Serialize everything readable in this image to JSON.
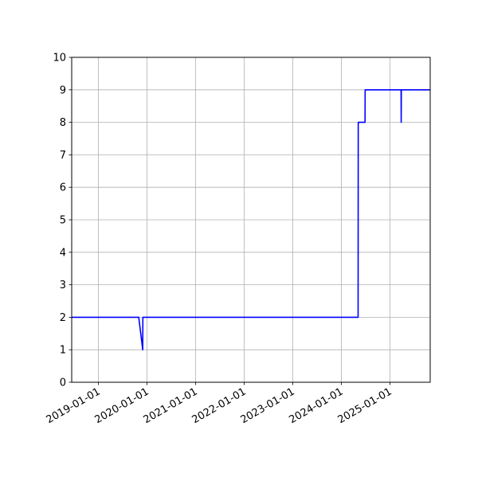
{
  "chart_data": {
    "type": "line",
    "title": "",
    "xlabel": "",
    "ylabel": "",
    "xlim": [
      "2018-06-14",
      "2025-10-30"
    ],
    "ylim": [
      0,
      10
    ],
    "grid": true,
    "line_color": "#0000ff",
    "grid_color": "#b0b0b0",
    "x_ticks": [
      "2019-01-01",
      "2020-01-01",
      "2021-01-01",
      "2022-01-01",
      "2023-01-01",
      "2024-01-01",
      "2025-01-01"
    ],
    "y_ticks": [
      0,
      1,
      2,
      3,
      4,
      5,
      6,
      7,
      8,
      9,
      10
    ],
    "series": [
      {
        "x": [
          "2018-06-14",
          "2019-10-31",
          "2019-11-30",
          "2019-12-01",
          "2024-05-06",
          "2024-05-07",
          "2024-06-27",
          "2024-06-28",
          "2025-03-25",
          "2025-03-26",
          "2025-03-27",
          "2025-10-30"
        ],
        "y": [
          2,
          2,
          1,
          2,
          2,
          8,
          8,
          9,
          9,
          8,
          9,
          9
        ]
      }
    ]
  }
}
